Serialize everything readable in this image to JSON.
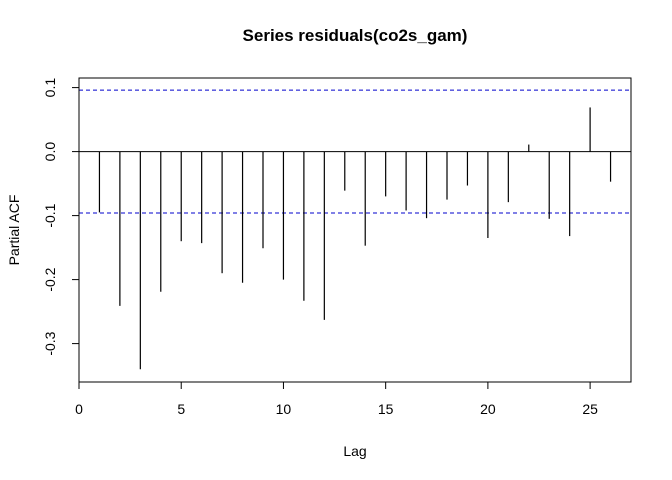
{
  "chart_data": {
    "type": "bar",
    "title": "Series  residuals(co2s_gam)",
    "xlabel": "Lag",
    "ylabel": "Partial ACF",
    "xlim": [
      0,
      27
    ],
    "ylim": [
      -0.36,
      0.115
    ],
    "x_ticks": [
      0,
      5,
      10,
      15,
      20,
      25
    ],
    "x_tick_labels": [
      "0",
      "5",
      "10",
      "15",
      "20",
      "25"
    ],
    "y_ticks": [
      -0.3,
      -0.2,
      -0.1,
      0.0,
      0.1
    ],
    "y_tick_labels": [
      "-0.3",
      "-0.2",
      "-0.1",
      "0.0",
      "0.1"
    ],
    "confidence_bound": 0.096,
    "confidence_color": "#0000cc",
    "grid": false,
    "series": [
      {
        "lags": [
          1,
          2,
          3,
          4,
          5,
          6,
          7,
          8,
          9,
          10,
          11,
          12,
          13,
          14,
          15,
          16,
          17,
          18,
          19,
          20,
          21,
          22,
          23,
          24,
          25,
          26
        ],
        "values": [
          -0.095,
          -0.241,
          -0.34,
          -0.219,
          -0.14,
          -0.143,
          -0.19,
          -0.205,
          -0.151,
          -0.2,
          -0.233,
          -0.263,
          -0.061,
          -0.147,
          -0.07,
          -0.092,
          -0.104,
          -0.075,
          -0.053,
          -0.135,
          -0.079,
          0.011,
          -0.105,
          -0.132,
          0.069,
          -0.047
        ]
      }
    ]
  }
}
